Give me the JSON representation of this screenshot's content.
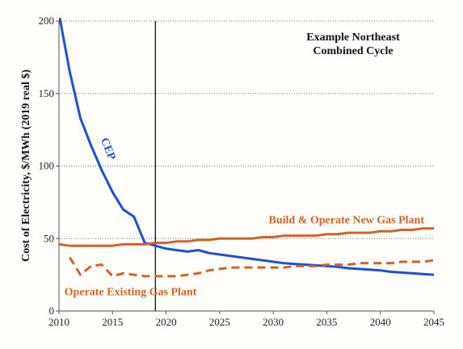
{
  "chart_data": {
    "type": "line",
    "title_lines": [
      "Example Northeast",
      "Combined Cycle"
    ],
    "ylabel": "Cost of Electricity, $/MWh (2019 real $)",
    "xlabel": "",
    "xlim": [
      2010,
      2045
    ],
    "ylim": [
      0,
      200
    ],
    "xticks": [
      2010,
      2015,
      2020,
      2025,
      2030,
      2035,
      2040,
      2045
    ],
    "yticks": [
      0,
      50,
      100,
      150,
      200
    ],
    "grid": "horizontal-dotted",
    "vline_x": 2019,
    "x": [
      2010,
      2011,
      2012,
      2013,
      2014,
      2015,
      2016,
      2017,
      2018,
      2019,
      2020,
      2021,
      2022,
      2023,
      2024,
      2025,
      2026,
      2027,
      2028,
      2029,
      2030,
      2031,
      2032,
      2033,
      2034,
      2035,
      2036,
      2037,
      2038,
      2039,
      2040,
      2041,
      2042,
      2043,
      2044,
      2045
    ],
    "series": [
      {
        "name": "CEP",
        "color": "#1f4fd8",
        "dash": "solid",
        "values": [
          205,
          165,
          133,
          114,
          97,
          82,
          70,
          65,
          47,
          45,
          43,
          42,
          41,
          42,
          40,
          39,
          38,
          37,
          36,
          35,
          34,
          33,
          32.5,
          32,
          31.5,
          31,
          30.5,
          29.5,
          29,
          28.5,
          28,
          27,
          26.5,
          26,
          25.5,
          25
        ]
      },
      {
        "name": "Build & Operate New Gas Plant",
        "color": "#d2622a",
        "dash": "solid",
        "values": [
          46,
          45,
          45,
          45,
          45,
          45,
          46,
          46,
          46,
          47,
          47,
          48,
          48,
          49,
          49,
          50,
          50,
          50,
          50,
          51,
          51,
          52,
          52,
          52,
          52,
          53,
          53,
          54,
          54,
          54,
          55,
          55,
          56,
          56,
          57,
          57
        ]
      },
      {
        "name": "Operate Existing Gas Plant",
        "color": "#d2622a",
        "dash": "dashed",
        "values": [
          null,
          37,
          25,
          31,
          32,
          24,
          26,
          25,
          24,
          24,
          24,
          24,
          25,
          26,
          28,
          29,
          30,
          30,
          30,
          30,
          30,
          30,
          31,
          31,
          31,
          32,
          32,
          32,
          33,
          33,
          33,
          33,
          34,
          34,
          34,
          35
        ]
      }
    ]
  }
}
